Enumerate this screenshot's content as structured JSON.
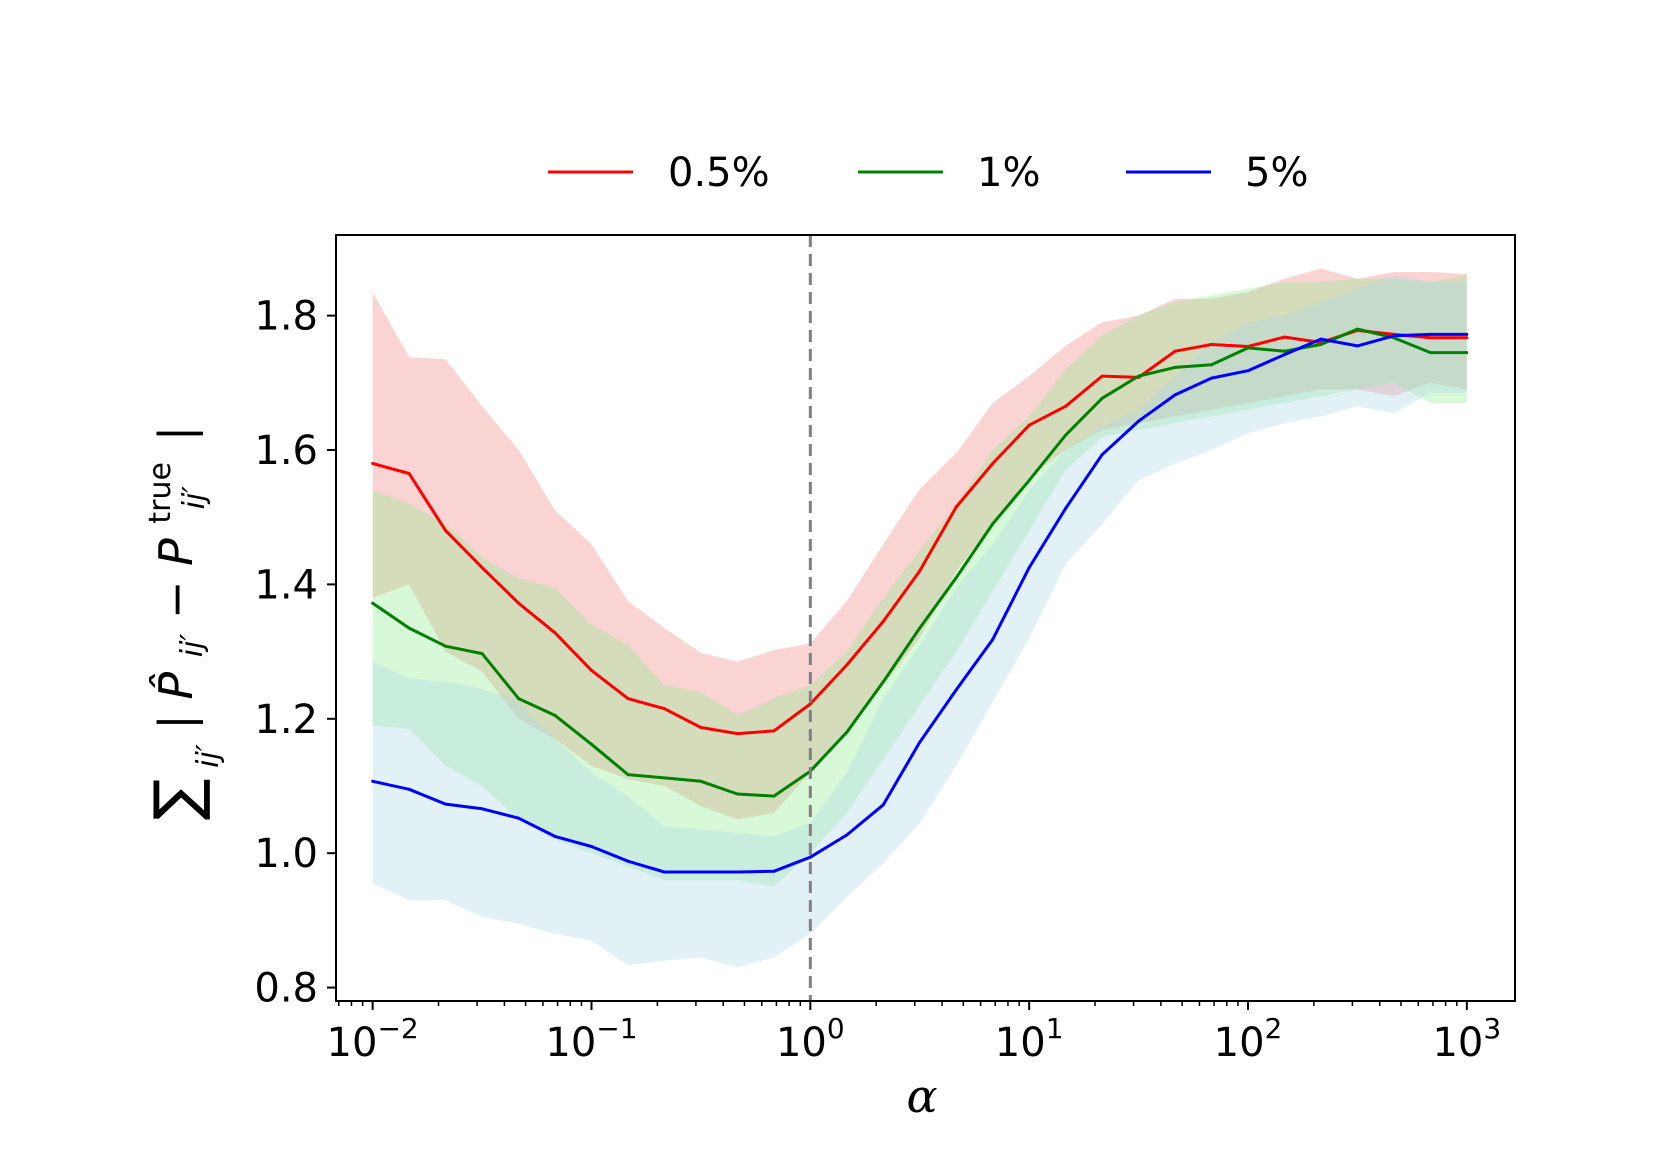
{
  "chart_data": {
    "type": "line",
    "title": "",
    "xlabel": "α",
    "ylabel": "∑ij′ |P̂ij′ − Pij′true|",
    "ylabel_parts": {
      "sum": "∑",
      "sum_sub": "ij′",
      "bar_open": "|",
      "p_hat": "P̂",
      "p_hat_sub": "ij′",
      "minus": " − P",
      "p_true_sup": "true",
      "p_true_sub": "ij′",
      "bar_close": "|"
    },
    "x_scale": "log",
    "xlim": [
      0.0068,
      1660
    ],
    "ylim": [
      0.78,
      1.92
    ],
    "x_ticks": [
      {
        "value": 0.01,
        "base": "10",
        "exp": "−2"
      },
      {
        "value": 0.1,
        "base": "10",
        "exp": "−1"
      },
      {
        "value": 1,
        "base": "10",
        "exp": "0"
      },
      {
        "value": 10,
        "base": "10",
        "exp": "1"
      },
      {
        "value": 100,
        "base": "10",
        "exp": "2"
      },
      {
        "value": 1000,
        "base": "10",
        "exp": "3"
      }
    ],
    "y_ticks": [
      {
        "value": 0.8,
        "label": "0.8"
      },
      {
        "value": 1.0,
        "label": "1.0"
      },
      {
        "value": 1.2,
        "label": "1.2"
      },
      {
        "value": 1.4,
        "label": "1.4"
      },
      {
        "value": 1.6,
        "label": "1.6"
      },
      {
        "value": 1.8,
        "label": "1.8"
      }
    ],
    "reference_line": {
      "x": 1,
      "style": "dashed",
      "color": "#808080"
    },
    "legend_position": "top-center, outside plot",
    "x": [
      0.01,
      0.01468,
      0.02154,
      0.03162,
      0.04642,
      0.06813,
      0.1,
      0.1468,
      0.2154,
      0.3162,
      0.4642,
      0.6813,
      1.0,
      1.468,
      2.154,
      3.162,
      4.642,
      6.813,
      10.0,
      14.68,
      21.54,
      31.62,
      46.42,
      68.13,
      100.0,
      146.8,
      215.4,
      316.2,
      464.2,
      681.3,
      1000.0
    ],
    "series": [
      {
        "name": "0.5%",
        "color": "#ff0000",
        "band_color": "#f08080",
        "values": [
          1.58,
          1.565,
          1.48,
          1.425,
          1.372,
          1.328,
          1.272,
          1.23,
          1.215,
          1.187,
          1.178,
          1.182,
          1.222,
          1.28,
          1.345,
          1.42,
          1.515,
          1.58,
          1.637,
          1.665,
          1.71,
          1.708,
          1.747,
          1.757,
          1.754,
          1.768,
          1.76,
          1.778,
          1.772,
          1.767,
          1.767
        ],
        "lower": [
          1.38,
          1.4,
          1.3,
          1.27,
          1.2,
          1.17,
          1.13,
          1.11,
          1.1,
          1.07,
          1.05,
          1.06,
          1.12,
          1.18,
          1.25,
          1.32,
          1.42,
          1.49,
          1.56,
          1.6,
          1.63,
          1.64,
          1.65,
          1.66,
          1.67,
          1.68,
          1.69,
          1.69,
          1.68,
          1.7,
          1.69
        ],
        "upper": [
          1.835,
          1.738,
          1.735,
          1.665,
          1.6,
          1.51,
          1.46,
          1.375,
          1.335,
          1.298,
          1.285,
          1.302,
          1.312,
          1.375,
          1.46,
          1.542,
          1.595,
          1.67,
          1.71,
          1.755,
          1.79,
          1.8,
          1.825,
          1.825,
          1.835,
          1.855,
          1.87,
          1.855,
          1.865,
          1.865,
          1.862
        ]
      },
      {
        "name": "1%",
        "color": "#008000",
        "band_color": "#90ee90",
        "values": [
          1.372,
          1.335,
          1.308,
          1.297,
          1.23,
          1.205,
          1.162,
          1.117,
          1.112,
          1.107,
          1.088,
          1.085,
          1.122,
          1.18,
          1.255,
          1.335,
          1.41,
          1.49,
          1.555,
          1.622,
          1.677,
          1.71,
          1.723,
          1.727,
          1.752,
          1.747,
          1.757,
          1.78,
          1.767,
          1.745,
          1.745
        ],
        "lower": [
          1.19,
          1.185,
          1.13,
          1.1,
          1.05,
          1.02,
          1.0,
          0.98,
          0.96,
          0.96,
          0.96,
          0.95,
          1.0,
          1.06,
          1.14,
          1.22,
          1.3,
          1.39,
          1.48,
          1.57,
          1.62,
          1.63,
          1.64,
          1.65,
          1.66,
          1.67,
          1.68,
          1.69,
          1.7,
          1.67,
          1.67
        ],
        "upper": [
          1.54,
          1.52,
          1.49,
          1.44,
          1.41,
          1.395,
          1.34,
          1.31,
          1.25,
          1.24,
          1.205,
          1.23,
          1.25,
          1.3,
          1.38,
          1.45,
          1.52,
          1.6,
          1.65,
          1.72,
          1.77,
          1.8,
          1.82,
          1.83,
          1.84,
          1.85,
          1.85,
          1.855,
          1.855,
          1.85,
          1.86
        ]
      },
      {
        "name": "5%",
        "color": "#0000ff",
        "band_color": "#add8e6",
        "values": [
          1.107,
          1.095,
          1.073,
          1.066,
          1.052,
          1.025,
          1.01,
          0.988,
          0.972,
          0.972,
          0.972,
          0.973,
          0.994,
          1.027,
          1.072,
          1.165,
          1.243,
          1.318,
          1.425,
          1.513,
          1.593,
          1.643,
          1.682,
          1.707,
          1.718,
          1.742,
          1.765,
          1.755,
          1.77,
          1.772,
          1.772
        ],
        "lower": [
          0.955,
          0.93,
          0.93,
          0.905,
          0.895,
          0.88,
          0.87,
          0.833,
          0.84,
          0.845,
          0.83,
          0.845,
          0.88,
          0.935,
          0.985,
          1.045,
          1.13,
          1.225,
          1.32,
          1.43,
          1.49,
          1.555,
          1.58,
          1.6,
          1.625,
          1.64,
          1.65,
          1.665,
          1.655,
          1.685,
          1.685
        ],
        "upper": [
          1.285,
          1.26,
          1.255,
          1.245,
          1.225,
          1.17,
          1.12,
          1.085,
          1.04,
          1.035,
          1.03,
          1.025,
          1.045,
          1.12,
          1.23,
          1.31,
          1.395,
          1.46,
          1.54,
          1.6,
          1.635,
          1.66,
          1.71,
          1.76,
          1.79,
          1.8,
          1.82,
          1.84,
          1.86,
          1.85,
          1.85
        ]
      }
    ]
  }
}
